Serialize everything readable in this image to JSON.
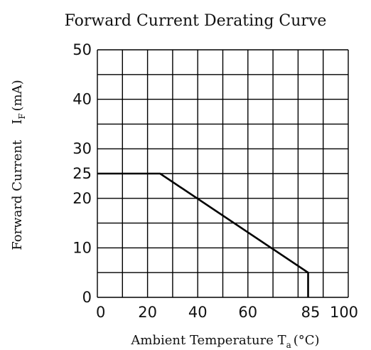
{
  "chart_data": {
    "type": "line",
    "title": "Forward Current Derating Curve",
    "xlabel": {
      "prefix": "Ambient Temperature T",
      "subscript": "a",
      "unit": "(°C)"
    },
    "ylabel": {
      "prefix": "Forward Current",
      "symbol": "I",
      "subscript": "F",
      "unit": "(mA)"
    },
    "xlim": [
      0,
      100
    ],
    "ylim": [
      0,
      50
    ],
    "x_tick_labels": [
      {
        "value": 0,
        "label": "0"
      },
      {
        "value": 20,
        "label": "20"
      },
      {
        "value": 40,
        "label": "40"
      },
      {
        "value": 60,
        "label": "60"
      },
      {
        "value": 85,
        "label": "85"
      },
      {
        "value": 100,
        "label": "100"
      }
    ],
    "y_tick_labels": [
      {
        "value": 0,
        "label": "0"
      },
      {
        "value": 10,
        "label": "10"
      },
      {
        "value": 20,
        "label": "20"
      },
      {
        "value": 25,
        "label": "25"
      },
      {
        "value": 30,
        "label": "30"
      },
      {
        "value": 40,
        "label": "40"
      },
      {
        "value": 50,
        "label": "50"
      }
    ],
    "x_grid": [
      0,
      10,
      20,
      30,
      40,
      50,
      60,
      70,
      80,
      90,
      100
    ],
    "y_grid": [
      0,
      5,
      10,
      15,
      20,
      25,
      30,
      35,
      40,
      45,
      50
    ],
    "grid": true,
    "series": [
      {
        "x": [
          0,
          25,
          84,
          84
        ],
        "y": [
          25,
          25,
          5,
          0
        ]
      }
    ],
    "colors": {
      "line": "#000000",
      "grid": "#000000"
    }
  }
}
